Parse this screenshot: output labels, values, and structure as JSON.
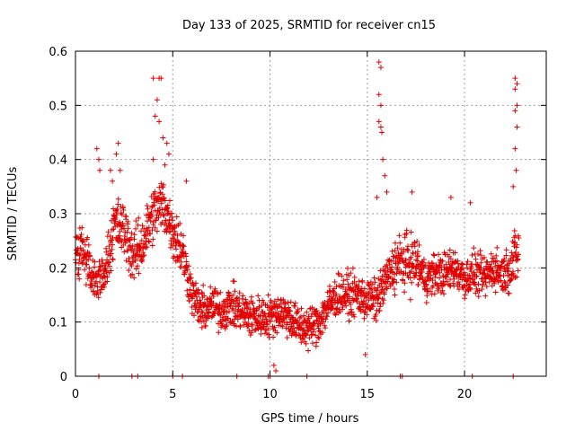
{
  "chart_data": {
    "type": "scatter",
    "title": "Day 133 of 2025, SRMTID for receiver cn15",
    "xlabel": "GPS time / hours",
    "ylabel": "SRMTID / TECUs",
    "xlim": [
      0,
      24.2
    ],
    "ylim": [
      0,
      0.6
    ],
    "x_ticks": [
      0,
      5,
      10,
      15,
      20
    ],
    "y_ticks": [
      0,
      0.1,
      0.2,
      0.3,
      0.4,
      0.5,
      0.6
    ],
    "x_tick_labels": [
      "0",
      "5",
      "10",
      "15",
      "20"
    ],
    "y_tick_labels": [
      "0",
      "0.1",
      "0.2",
      "0.3",
      "0.4",
      "0.5",
      "0.6"
    ],
    "grid": true,
    "marker": "+",
    "color": "#e00000",
    "series": [
      {
        "name": "SRMTID",
        "trend": [
          [
            0.0,
            0.22
          ],
          [
            0.5,
            0.22
          ],
          [
            1.0,
            0.17
          ],
          [
            1.5,
            0.19
          ],
          [
            2.0,
            0.28
          ],
          [
            2.5,
            0.27
          ],
          [
            3.0,
            0.22
          ],
          [
            3.5,
            0.25
          ],
          [
            4.0,
            0.3
          ],
          [
            4.5,
            0.32
          ],
          [
            5.0,
            0.27
          ],
          [
            5.5,
            0.23
          ],
          [
            6.0,
            0.15
          ],
          [
            6.5,
            0.12
          ],
          [
            7.0,
            0.13
          ],
          [
            7.5,
            0.12
          ],
          [
            8.0,
            0.13
          ],
          [
            8.5,
            0.12
          ],
          [
            9.0,
            0.11
          ],
          [
            9.5,
            0.11
          ],
          [
            10.0,
            0.11
          ],
          [
            10.5,
            0.12
          ],
          [
            11.0,
            0.11
          ],
          [
            11.5,
            0.09
          ],
          [
            12.0,
            0.09
          ],
          [
            12.5,
            0.1
          ],
          [
            13.0,
            0.13
          ],
          [
            13.5,
            0.15
          ],
          [
            14.0,
            0.15
          ],
          [
            14.5,
            0.15
          ],
          [
            15.0,
            0.14
          ],
          [
            15.5,
            0.14
          ],
          [
            16.0,
            0.18
          ],
          [
            16.5,
            0.21
          ],
          [
            17.0,
            0.21
          ],
          [
            17.5,
            0.21
          ],
          [
            18.0,
            0.18
          ],
          [
            18.5,
            0.19
          ],
          [
            19.0,
            0.19
          ],
          [
            19.5,
            0.2
          ],
          [
            20.0,
            0.18
          ],
          [
            20.5,
            0.19
          ],
          [
            21.0,
            0.18
          ],
          [
            21.5,
            0.2
          ],
          [
            22.0,
            0.19
          ],
          [
            22.5,
            0.21
          ],
          [
            22.8,
            0.23
          ]
        ],
        "spread": 0.055,
        "spikes": [
          {
            "x": 1.1,
            "y": 0.42
          },
          {
            "x": 1.2,
            "y": 0.4
          },
          {
            "x": 1.25,
            "y": 0.38
          },
          {
            "x": 2.2,
            "y": 0.43
          },
          {
            "x": 2.1,
            "y": 0.41
          },
          {
            "x": 2.3,
            "y": 0.38
          },
          {
            "x": 1.8,
            "y": 0.38
          },
          {
            "x": 1.9,
            "y": 0.36
          },
          {
            "x": 4.0,
            "y": 0.55
          },
          {
            "x": 4.3,
            "y": 0.55
          },
          {
            "x": 4.4,
            "y": 0.55
          },
          {
            "x": 4.2,
            "y": 0.51
          },
          {
            "x": 4.1,
            "y": 0.48
          },
          {
            "x": 4.3,
            "y": 0.47
          },
          {
            "x": 4.5,
            "y": 0.44
          },
          {
            "x": 4.7,
            "y": 0.43
          },
          {
            "x": 4.8,
            "y": 0.41
          },
          {
            "x": 4.6,
            "y": 0.39
          },
          {
            "x": 4.0,
            "y": 0.4
          },
          {
            "x": 5.7,
            "y": 0.36
          },
          {
            "x": 15.6,
            "y": 0.58
          },
          {
            "x": 15.7,
            "y": 0.57
          },
          {
            "x": 15.6,
            "y": 0.52
          },
          {
            "x": 15.7,
            "y": 0.5
          },
          {
            "x": 15.6,
            "y": 0.47
          },
          {
            "x": 15.7,
            "y": 0.46
          },
          {
            "x": 15.75,
            "y": 0.45
          },
          {
            "x": 15.8,
            "y": 0.4
          },
          {
            "x": 15.9,
            "y": 0.37
          },
          {
            "x": 15.5,
            "y": 0.33
          },
          {
            "x": 16.0,
            "y": 0.34
          },
          {
            "x": 22.6,
            "y": 0.55
          },
          {
            "x": 22.7,
            "y": 0.54
          },
          {
            "x": 22.6,
            "y": 0.53
          },
          {
            "x": 22.7,
            "y": 0.5
          },
          {
            "x": 22.6,
            "y": 0.49
          },
          {
            "x": 22.7,
            "y": 0.46
          },
          {
            "x": 22.6,
            "y": 0.42
          },
          {
            "x": 22.65,
            "y": 0.38
          },
          {
            "x": 22.5,
            "y": 0.35
          },
          {
            "x": 17.3,
            "y": 0.34
          },
          {
            "x": 19.3,
            "y": 0.33
          },
          {
            "x": 20.3,
            "y": 0.32
          },
          {
            "x": 10.2,
            "y": 0.02
          },
          {
            "x": 10.3,
            "y": 0.01
          },
          {
            "x": 14.9,
            "y": 0.04
          }
        ],
        "zero_markers": [
          1.2,
          2.9,
          3.2,
          5.0,
          5.5,
          8.3,
          9.9,
          10.0,
          11.9,
          16.7,
          16.8,
          20.4,
          22.5
        ]
      }
    ]
  }
}
